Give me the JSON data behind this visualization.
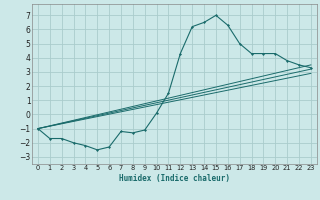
{
  "xlabel": "Humidex (Indice chaleur)",
  "ylabel": "",
  "bg_color": "#cce8e8",
  "grid_color": "#aacccc",
  "line_color": "#1a6b6b",
  "xlim": [
    -0.5,
    23.5
  ],
  "ylim": [
    -3.5,
    7.8
  ],
  "xticks": [
    0,
    1,
    2,
    3,
    4,
    5,
    6,
    7,
    8,
    9,
    10,
    11,
    12,
    13,
    14,
    15,
    16,
    17,
    18,
    19,
    20,
    21,
    22,
    23
  ],
  "yticks": [
    -3,
    -2,
    -1,
    0,
    1,
    2,
    3,
    4,
    5,
    6,
    7
  ],
  "main_x": [
    0,
    1,
    2,
    3,
    4,
    5,
    6,
    7,
    8,
    9,
    10,
    11,
    12,
    13,
    14,
    15,
    16,
    17,
    18,
    19,
    20,
    21,
    22,
    23
  ],
  "main_y": [
    -1.0,
    -1.7,
    -1.7,
    -2.0,
    -2.2,
    -2.5,
    -2.3,
    -1.2,
    -1.3,
    -1.1,
    0.1,
    1.5,
    4.3,
    6.2,
    6.5,
    7.0,
    6.3,
    5.0,
    4.3,
    4.3,
    4.3,
    3.8,
    3.5,
    3.3
  ],
  "line2_x": [
    0,
    23
  ],
  "line2_y": [
    -1.0,
    3.5
  ],
  "line3_x": [
    0,
    23
  ],
  "line3_y": [
    -1.0,
    3.2
  ],
  "line4_x": [
    0,
    23
  ],
  "line4_y": [
    -1.0,
    2.9
  ]
}
